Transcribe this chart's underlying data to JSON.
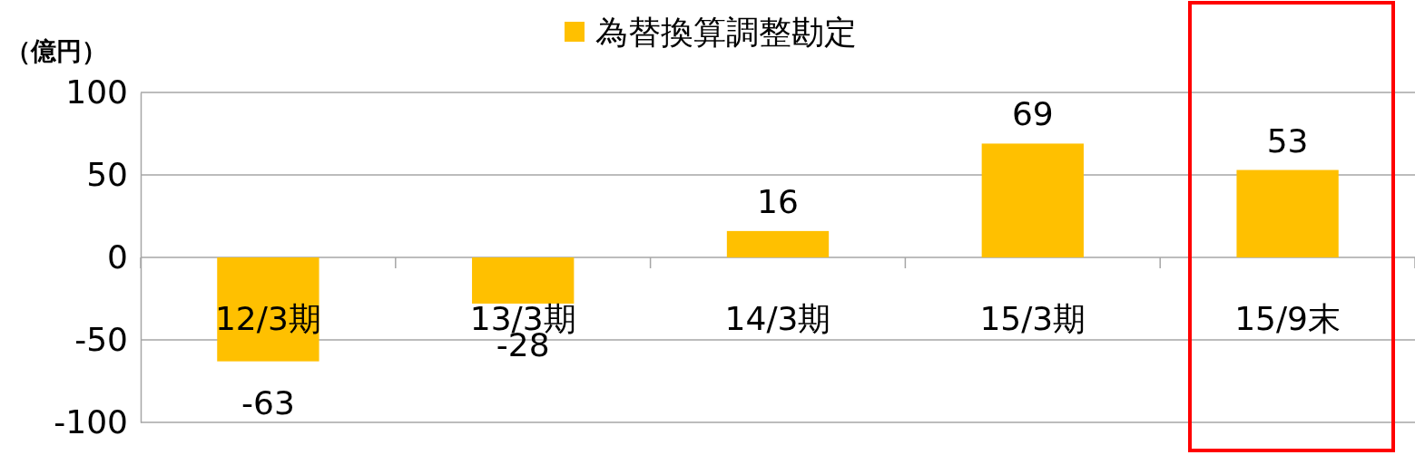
{
  "chart_data": {
    "type": "bar",
    "ylabel": "（億円）",
    "categories": [
      "12/3期",
      "13/3期",
      "14/3期",
      "15/3期",
      "15/9末"
    ],
    "series": [
      {
        "name": "為替換算調整勘定",
        "color": "#ffc000",
        "values": [
          -63,
          -28,
          16,
          69,
          53
        ]
      }
    ],
    "ylim": [
      -100,
      100
    ],
    "yticks": [
      -100,
      -50,
      0,
      50,
      100
    ],
    "grid": "y",
    "legend": "top",
    "data_labels": true
  }
}
